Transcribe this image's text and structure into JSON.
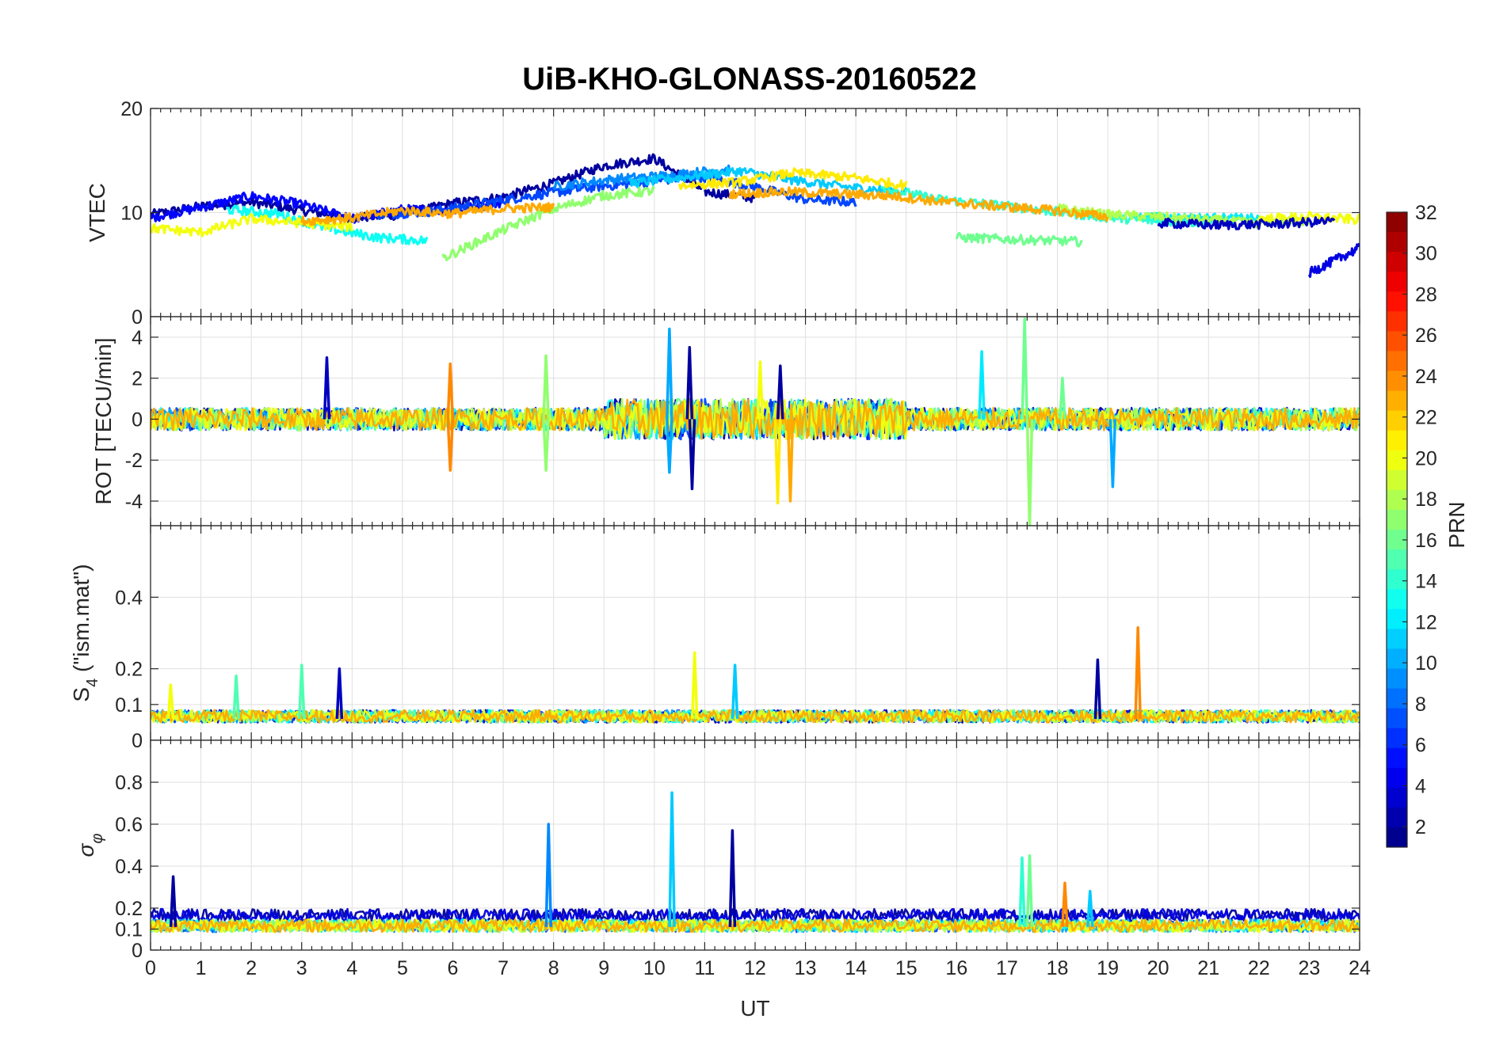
{
  "chart_data": {
    "title": "UiB-KHO-GLONASS-20160522",
    "x": {
      "label": "UT",
      "lim": [
        0,
        24
      ],
      "ticks": [
        0,
        1,
        2,
        3,
        4,
        5,
        6,
        7,
        8,
        9,
        10,
        11,
        12,
        13,
        14,
        15,
        16,
        17,
        18,
        19,
        20,
        21,
        22,
        23,
        24
      ]
    },
    "colorbar": {
      "label": "PRN",
      "colormap": "jet",
      "lim": [
        1,
        32
      ],
      "levels": 32,
      "ticks": [
        2,
        4,
        6,
        8,
        10,
        12,
        14,
        16,
        18,
        20,
        22,
        24,
        26,
        28,
        30,
        32
      ]
    },
    "panels": [
      {
        "id": "vtec",
        "type": "line",
        "ylabel": "VTEC",
        "ylim": [
          0,
          20
        ],
        "yticks": [
          0,
          10,
          20
        ],
        "grid": true,
        "baseline": 10,
        "series": [
          {
            "prn": 2,
            "start": 0.0,
            "end": 12.0,
            "values": [
              9.8,
              10.6,
              11.0,
              10.2,
              9.5,
              9.8,
              10.9,
              11.5,
              12.8,
              14.5,
              15.2,
              12.0,
              11.4
            ]
          },
          {
            "prn": 5,
            "start": 0.0,
            "end": 7.0,
            "values": [
              9.5,
              10.5,
              11.6,
              10.8,
              9.4,
              10.3,
              10.2,
              11.0
            ]
          },
          {
            "prn": 7,
            "start": 4.5,
            "end": 14.0,
            "values": [
              9.8,
              10.1,
              10.9,
              11.7,
              12.4,
              12.9,
              13.5,
              12.6,
              11.3,
              11.0
            ]
          },
          {
            "prn": 9,
            "start": 8.0,
            "end": 11.5,
            "values": [
              12.5,
              13.2,
              13.6,
              14.2
            ]
          },
          {
            "prn": 11,
            "start": 9.5,
            "end": 15.0,
            "values": [
              12.8,
              13.4,
              14.0,
              13.1,
              12.4,
              12.0
            ]
          },
          {
            "prn": 12,
            "start": 19.5,
            "end": 22.0,
            "values": [
              9.6,
              9.5,
              9.4
            ]
          },
          {
            "prn": 13,
            "start": 1.5,
            "end": 5.5,
            "values": [
              10.3,
              9.9,
              8.5,
              7.6,
              7.3
            ]
          },
          {
            "prn": 14,
            "start": 14.5,
            "end": 21.0,
            "values": [
              12.4,
              11.3,
              10.8,
              10.2,
              9.6,
              9.2,
              9.0
            ]
          },
          {
            "prn": 16,
            "start": 16.0,
            "end": 18.5,
            "values": [
              7.6,
              7.4,
              7.2
            ]
          },
          {
            "prn": 17,
            "start": 5.8,
            "end": 10.0,
            "values": [
              5.6,
              8.0,
              10.2,
              11.6,
              12.1
            ]
          },
          {
            "prn": 18,
            "start": 18.0,
            "end": 23.0,
            "values": [
              10.4,
              9.8,
              9.6,
              9.3,
              9.0,
              9.2
            ]
          },
          {
            "prn": 20,
            "start": 0.0,
            "end": 4.0,
            "values": [
              8.5,
              8.1,
              9.4,
              9.0,
              8.6
            ]
          },
          {
            "prn": 21,
            "start": 10.5,
            "end": 15.0,
            "values": [
              12.6,
              12.9,
              13.8,
              13.4,
              12.6
            ]
          },
          {
            "prn": 23,
            "start": 3.0,
            "end": 8.0,
            "values": [
              9.2,
              9.5,
              10.2,
              9.9,
              10.4,
              10.5
            ]
          },
          {
            "prn": 23,
            "start": 11.5,
            "end": 19.0,
            "values": [
              11.8,
              12.0,
              11.8,
              11.6,
              11.0,
              10.6,
              10.2,
              9.6
            ]
          },
          {
            "prn": 20,
            "start": 22.0,
            "end": 24.0,
            "values": [
              9.4,
              9.6,
              9.3
            ]
          },
          {
            "prn": 4,
            "start": 23.0,
            "end": 24.0,
            "values": [
              4.2,
              5.4,
              6.6
            ]
          },
          {
            "prn": 3,
            "start": 20.0,
            "end": 23.5,
            "values": [
              9.0,
              8.8,
              8.9,
              9.2
            ]
          }
        ]
      },
      {
        "id": "rot",
        "type": "line",
        "ylabel": "ROT [TECU/min]",
        "ylim": [
          -5.2,
          5
        ],
        "yticks": [
          -4,
          -2,
          0,
          2,
          4
        ],
        "grid": true,
        "spikes": [
          {
            "prn": 3,
            "x": 3.5,
            "y": 3.0
          },
          {
            "prn": 24,
            "x": 5.95,
            "y": 2.7
          },
          {
            "prn": 24,
            "x": 5.95,
            "y": -2.5
          },
          {
            "prn": 17,
            "x": 7.85,
            "y": 3.1
          },
          {
            "prn": 17,
            "x": 7.85,
            "y": -2.5
          },
          {
            "prn": 10,
            "x": 10.3,
            "y": 4.4
          },
          {
            "prn": 10,
            "x": 10.3,
            "y": -2.6
          },
          {
            "prn": 2,
            "x": 10.7,
            "y": 3.5
          },
          {
            "prn": 2,
            "x": 10.75,
            "y": -3.4
          },
          {
            "prn": 20,
            "x": 12.1,
            "y": 2.8
          },
          {
            "prn": 21,
            "x": 12.45,
            "y": -4.1
          },
          {
            "prn": 23,
            "x": 12.7,
            "y": -4.0
          },
          {
            "prn": 2,
            "x": 12.5,
            "y": 2.6
          },
          {
            "prn": 16,
            "x": 17.35,
            "y": 4.9
          },
          {
            "prn": 17,
            "x": 17.45,
            "y": -5.2
          },
          {
            "prn": 16,
            "x": 18.1,
            "y": 2.0
          },
          {
            "prn": 10,
            "x": 19.1,
            "y": -3.3
          },
          {
            "prn": 12,
            "x": 16.5,
            "y": 3.3
          }
        ]
      },
      {
        "id": "s4",
        "type": "line",
        "ylabel": "S4 (\"ism.mat\")",
        "ylim": [
          0,
          0.6
        ],
        "yticks": [
          0,
          0.1,
          0.2,
          0.4
        ],
        "grid": true,
        "spikes": [
          {
            "prn": 20,
            "x": 0.4,
            "y": 0.155
          },
          {
            "prn": 15,
            "x": 1.7,
            "y": 0.18
          },
          {
            "prn": 15,
            "x": 3.0,
            "y": 0.21
          },
          {
            "prn": 3,
            "x": 3.75,
            "y": 0.2
          },
          {
            "prn": 20,
            "x": 10.8,
            "y": 0.245
          },
          {
            "prn": 11,
            "x": 11.6,
            "y": 0.21
          },
          {
            "prn": 2,
            "x": 18.8,
            "y": 0.225
          },
          {
            "prn": 24,
            "x": 19.6,
            "y": 0.315
          }
        ]
      },
      {
        "id": "sigma-phi",
        "type": "line",
        "ylabel": "σφ",
        "ylim": [
          0,
          1
        ],
        "yticks": [
          0,
          0.1,
          0.2,
          0.4,
          0.6,
          0.8
        ],
        "grid": true,
        "spikes": [
          {
            "prn": 2,
            "x": 0.45,
            "y": 0.35
          },
          {
            "prn": 9,
            "x": 7.9,
            "y": 0.6
          },
          {
            "prn": 11,
            "x": 10.35,
            "y": 0.75
          },
          {
            "prn": 2,
            "x": 11.55,
            "y": 0.57
          },
          {
            "prn": 14,
            "x": 17.3,
            "y": 0.44
          },
          {
            "prn": 16,
            "x": 17.45,
            "y": 0.45
          },
          {
            "prn": 24,
            "x": 18.15,
            "y": 0.32
          },
          {
            "prn": 11,
            "x": 18.65,
            "y": 0.28
          }
        ]
      }
    ]
  }
}
